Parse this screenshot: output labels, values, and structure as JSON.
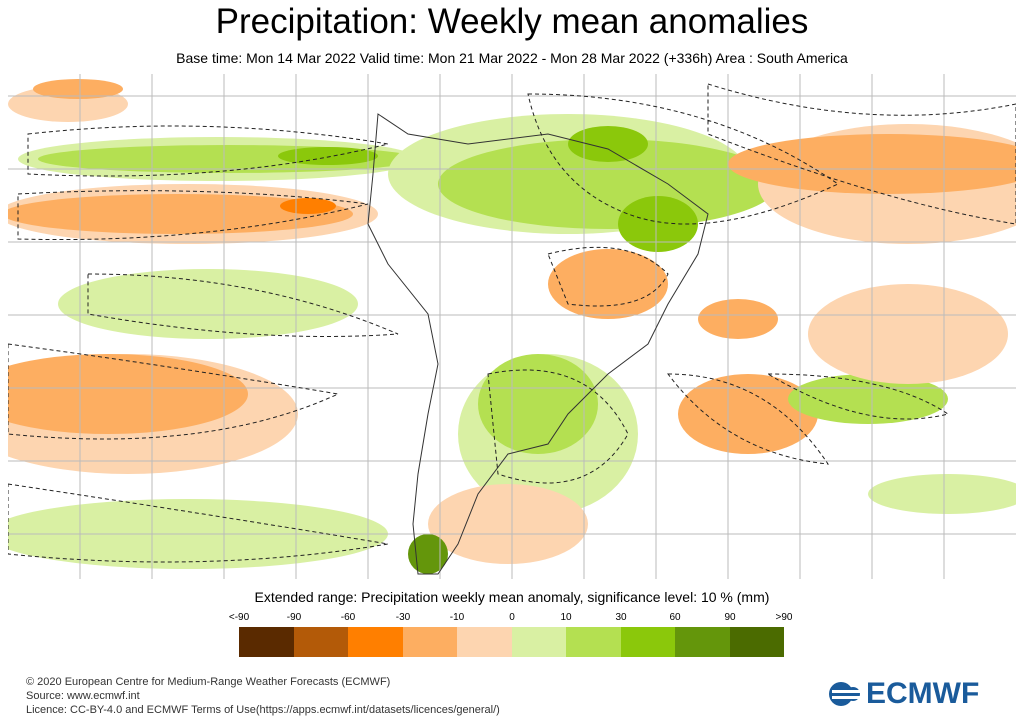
{
  "title": "Precipitation: Weekly mean anomalies",
  "subtitle": "Base time: Mon 14 Mar 2022 Valid time: Mon 21 Mar 2022 - Mon 28 Mar 2022 (+336h) Area : South America",
  "legend": {
    "title": "Extended range: Precipitation weekly mean anomaly, significance level: 10 % (mm)",
    "ticks": [
      "<-90",
      "-90",
      "-60",
      "-30",
      "-10",
      "0",
      "10",
      "30",
      "60",
      "90",
      ">90"
    ],
    "colors": [
      "#5a2a00",
      "#b35a08",
      "#ff7f00",
      "#fdae61",
      "#fdd5b0",
      "#d9f0a3",
      "#b4e051",
      "#8bc80b",
      "#64960b",
      "#4b6b00"
    ]
  },
  "footer": {
    "line1": "© 2020 European Centre for Medium-Range Weather Forecasts (ECMWF)",
    "line2": "Source: www.ecmwf.int",
    "line3": "Licence: CC-BY-4.0 and ECMWF Terms of Use(https://apps.ecmwf.int/datasets/licences/general/)"
  },
  "logo": "ECMWF"
}
